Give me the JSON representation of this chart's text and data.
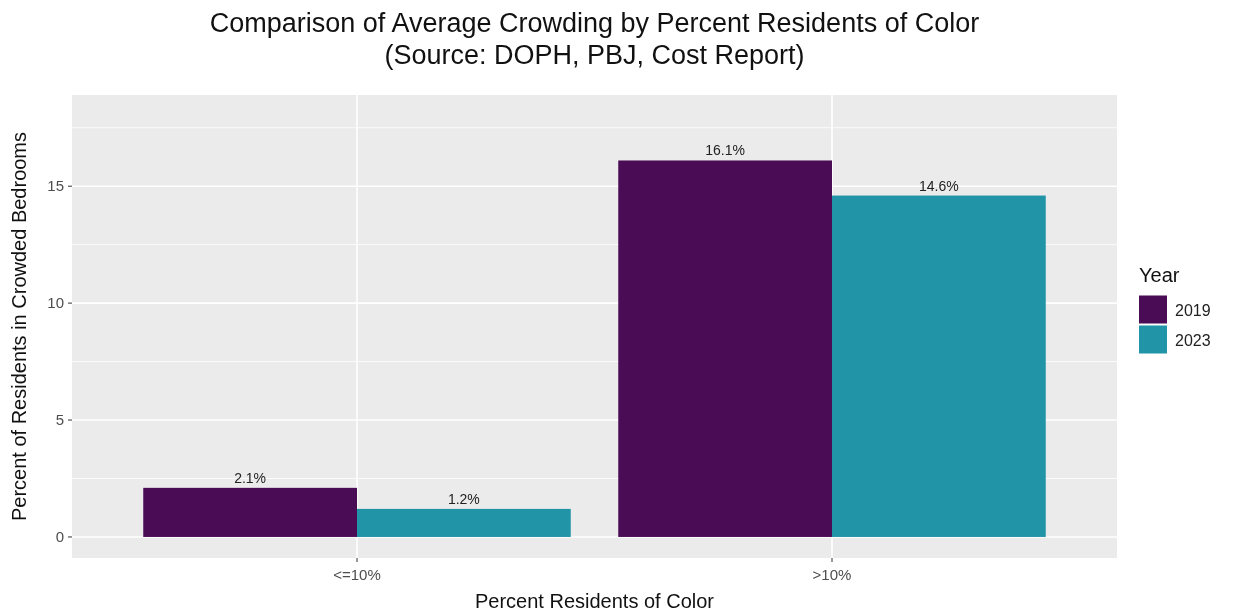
{
  "chart_data": {
    "type": "bar",
    "title": "Comparison of Average Crowding by Percent Residents of Color\n(Source: DOPH, PBJ, Cost Report)",
    "xlabel": "Percent Residents of Color",
    "ylabel": "Percent of Residents in Crowded Bedrooms",
    "legend_title": "Year",
    "categories": [
      "<=10%",
      ">10%"
    ],
    "series": [
      {
        "name": "2019",
        "color": "#4a0c55",
        "values": [
          2.1,
          16.1
        ],
        "value_labels": [
          "2.1%",
          "16.1%"
        ]
      },
      {
        "name": "2023",
        "color": "#2194a8",
        "values": [
          1.2,
          14.6
        ],
        "value_labels": [
          "1.2%",
          "14.6%"
        ]
      }
    ],
    "ylim": [
      -0.9,
      18.9
    ],
    "yticks": [
      0,
      5,
      10,
      15
    ],
    "grid": true,
    "legend": "right"
  }
}
